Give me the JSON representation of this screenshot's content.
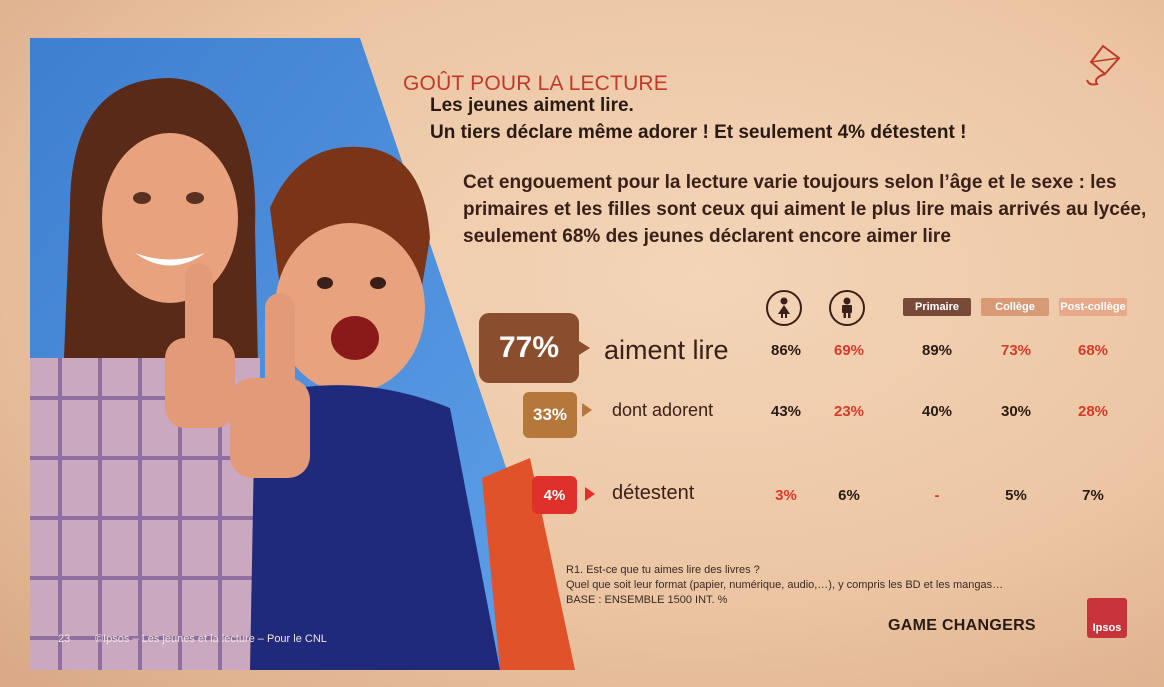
{
  "header": {
    "section_title": "GOÛT POUR LA LECTURE",
    "headline_line1": "Les jeunes aiment lire.",
    "headline_line2": "Un tiers déclare même adorer ! Et seulement 4% détestent !"
  },
  "intro_text": "Cet engouement pour la lecture varie toujours selon l’âge et le sexe : les primaires et les filles sont ceux qui aiment le plus lire mais arrivés au lycée, seulement 68% des jeunes déclarent encore aimer lire",
  "columns": {
    "girl_icon": "girl-icon",
    "boy_icon": "boy-icon",
    "primaire": "Primaire",
    "college": "Collège",
    "post_college": "Post-collège"
  },
  "rows": [
    {
      "total": "77%",
      "label": "aiment lire",
      "filles": "86%",
      "garcons": "69%",
      "primaire": "89%",
      "college": "73%",
      "post_college": "68%"
    },
    {
      "total": "33%",
      "label": "dont adorent",
      "filles": "43%",
      "garcons": "23%",
      "primaire": "40%",
      "college": "30%",
      "post_college": "28%"
    },
    {
      "total": "4%",
      "label": "détestent",
      "filles": "3%",
      "garcons": "6%",
      "primaire": "-",
      "college": "5%",
      "post_college": "7%"
    }
  ],
  "colors": {
    "title_red": "#c0392b",
    "badge_brown": "#8a4e2e",
    "badge_tan": "#b5773a",
    "badge_red": "#e0302a",
    "pill_primaire": "#7a4a38",
    "pill_college": "#d79a74",
    "pill_post_college": "#e8a98a",
    "value_red": "#d63a2a"
  },
  "footnote": {
    "line1": "R1. Est-ce que tu aimes lire des livres ?",
    "line2": "Quel que soit leur format (papier, numérique, audio,…), y compris les BD et les mangas…",
    "line3": "BASE : ENSEMBLE 1500 INT. %"
  },
  "footer": {
    "page_number": "23",
    "credit": "©Ipsos – Les jeunes et la lecture – Pour le CNL",
    "brand": "GAME CHANGERS",
    "logo": "Ipsos"
  }
}
